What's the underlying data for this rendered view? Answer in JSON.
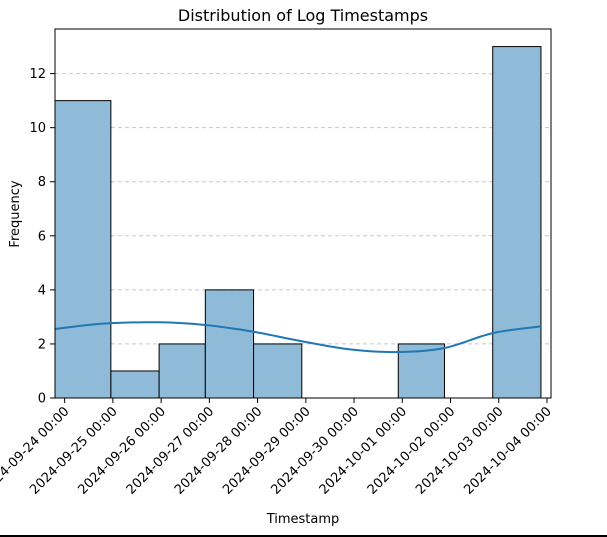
{
  "chart_data": {
    "type": "bar",
    "subtype": "histogram-with-kde",
    "title": "Distribution of Log Timestamps",
    "xlabel": "Timestamp",
    "ylabel": "Frequency",
    "x_domain": [
      "2024-09-23 19:12",
      "2024-10-04 02:00"
    ],
    "ylim": [
      0,
      13.65
    ],
    "yticks": [
      0,
      2,
      4,
      6,
      8,
      10,
      12
    ],
    "xticks": [
      "2024-09-24 00:00",
      "2024-09-25 00:00",
      "2024-09-26 00:00",
      "2024-09-27 00:00",
      "2024-09-28 00:00",
      "2024-09-29 00:00",
      "2024-09-30 00:00",
      "2024-10-01 00:00",
      "2024-10-02 00:00",
      "2024-10-03 00:00",
      "2024-10-04 00:00"
    ],
    "bins": [
      {
        "start": "2024-09-23 19:12",
        "end": "2024-09-24 23:00",
        "value": 11
      },
      {
        "start": "2024-09-24 23:00",
        "end": "2024-09-25 23:00",
        "value": 1
      },
      {
        "start": "2024-09-25 23:00",
        "end": "2024-09-26 22:00",
        "value": 2
      },
      {
        "start": "2024-09-26 22:00",
        "end": "2024-09-27 22:00",
        "value": 4
      },
      {
        "start": "2024-09-27 22:00",
        "end": "2024-09-28 22:00",
        "value": 2
      },
      {
        "start": "2024-09-28 22:00",
        "end": "2024-09-29 22:00",
        "value": 0
      },
      {
        "start": "2024-09-29 22:00",
        "end": "2024-09-30 22:00",
        "value": 0
      },
      {
        "start": "2024-09-30 22:00",
        "end": "2024-10-01 21:00",
        "value": 2
      },
      {
        "start": "2024-10-01 21:00",
        "end": "2024-10-02 21:00",
        "value": 0
      },
      {
        "start": "2024-10-02 21:00",
        "end": "2024-10-03 21:00",
        "value": 13
      }
    ],
    "kde": {
      "x": [
        "2024-09-23 19:12",
        "2024-09-24 19:00",
        "2024-09-25 23:00",
        "2024-09-26 22:00",
        "2024-09-27 22:00",
        "2024-09-28 22:00",
        "2024-09-29 22:00",
        "2024-09-30 22:00",
        "2024-10-01 21:00",
        "2024-10-02 21:00",
        "2024-10-03 21:00"
      ],
      "y": [
        2.55,
        2.75,
        2.8,
        2.7,
        2.45,
        2.1,
        1.8,
        1.7,
        1.85,
        2.4,
        2.65
      ]
    },
    "colors": {
      "bar_fill": "#8fbbd9",
      "bar_edge": "#000000",
      "kde_line": "#1f77b4",
      "grid": "#c8c8c8"
    },
    "grid": {
      "y": true,
      "x": false,
      "style": "dashed"
    },
    "legend": "none"
  }
}
